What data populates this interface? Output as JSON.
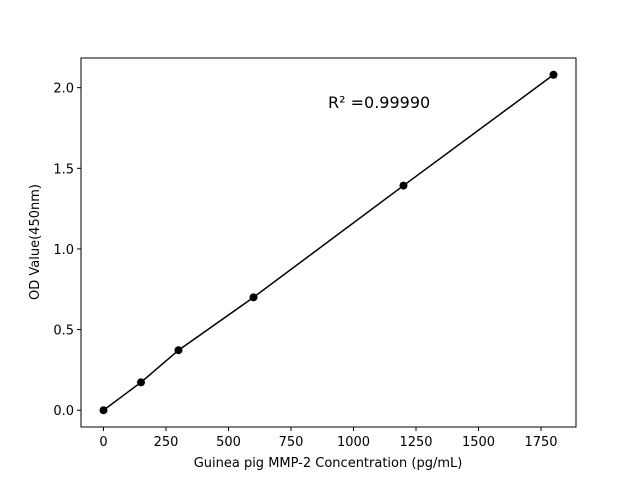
{
  "chart_data": {
    "type": "line",
    "x": [
      0,
      150,
      300,
      600,
      1200,
      1800
    ],
    "values": [
      0,
      0.173,
      0.372,
      0.7,
      1.393,
      2.08
    ],
    "color": "#000000",
    "xlabel": "Guinea pig MMP-2 Concentration (pg/mL)",
    "ylabel": "OD Value(450nm)",
    "annotation": "R² =0.99990",
    "xlim": [
      -90,
      1890
    ],
    "ylim": [
      -0.104,
      2.184
    ],
    "xticks": [
      0,
      250,
      500,
      750,
      1000,
      1250,
      1500,
      1750
    ],
    "yticks": [
      {
        "value": 0,
        "label": "0.0"
      },
      0.5,
      {
        "value": 1,
        "label": "1.0"
      },
      1.5,
      {
        "value": 2,
        "label": "2.0"
      }
    ]
  }
}
